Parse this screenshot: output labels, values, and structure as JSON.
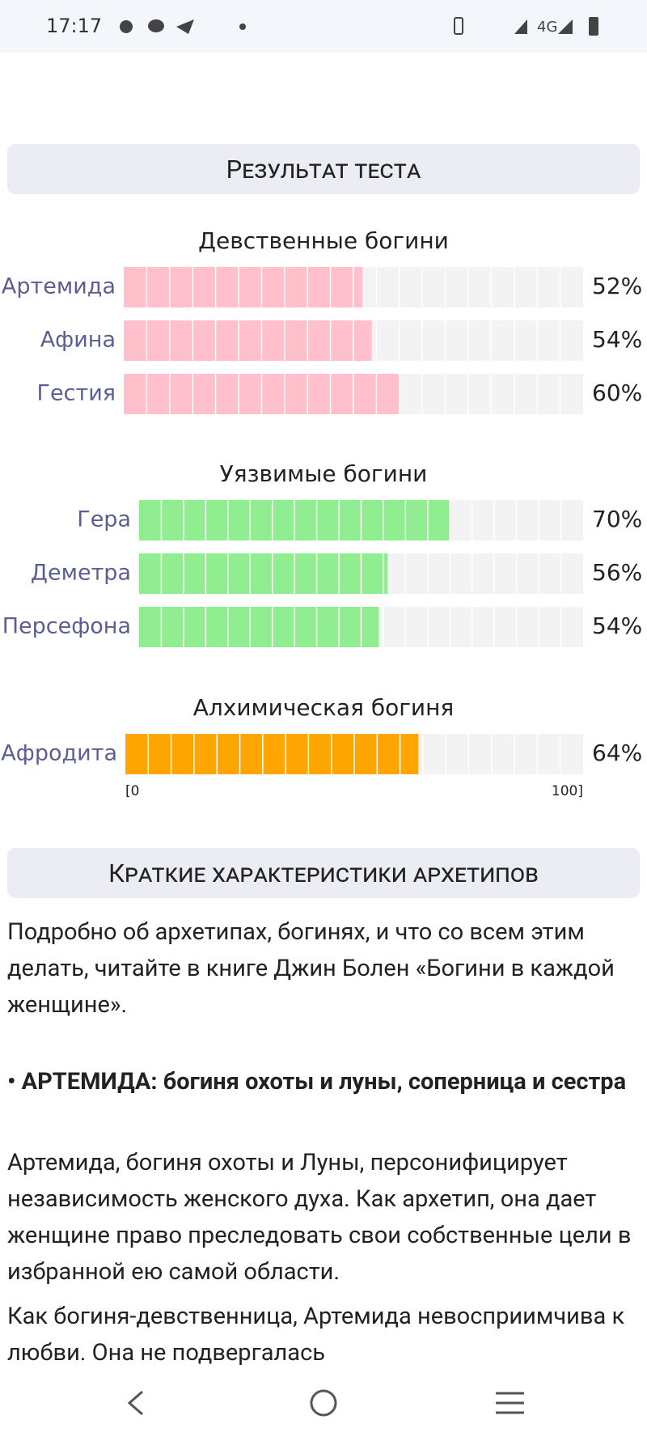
{
  "status_bar": {
    "time": "17:17",
    "network": "4G"
  },
  "results_heading": "Результат теста",
  "chart_data": [
    {
      "type": "bar",
      "orientation": "horizontal",
      "title": "Девственные богини",
      "categories": [
        "Артемида",
        "Афина",
        "Гестия"
      ],
      "values": [
        52,
        54,
        60
      ],
      "value_labels": [
        "52%",
        "54%",
        "60%"
      ],
      "color": "#ffc0cb",
      "xlim": [
        0,
        100
      ]
    },
    {
      "type": "bar",
      "orientation": "horizontal",
      "title": "Уязвимые богини",
      "categories": [
        "Гера",
        "Деметра",
        "Персефона"
      ],
      "values": [
        70,
        56,
        54
      ],
      "value_labels": [
        "70%",
        "56%",
        "54%"
      ],
      "color": "#90ee90",
      "xlim": [
        0,
        100
      ]
    },
    {
      "type": "bar",
      "orientation": "horizontal",
      "title": "Алхимическая богиня",
      "categories": [
        "Афродита"
      ],
      "values": [
        64
      ],
      "value_labels": [
        "64%"
      ],
      "color": "#ffa500",
      "xlim": [
        0,
        100
      ],
      "xticks": [
        {
          "value": 0,
          "label": "[0"
        },
        {
          "value": 100,
          "label": "100]"
        }
      ]
    }
  ],
  "summary_heading": "Краткие характеристики архетипов",
  "article": {
    "intro": "Подробно об архетипах, богинях, и что со всем этим делать, читайте в книге Джин Болен «Богини в каждой женщине».",
    "section_title": "• АРТЕМИДА: богиня охоты и луны, соперница и сестра",
    "paragraphs": [
      "Артемида, богиня охоты и Луны, персонифицирует независимость женского духа. Как архетип, она дает женщине право преследовать свои собственные цели в избранной ею самой области.",
      "Как богиня-девственница, Артемида невосприимчива к любви. Она не подвергалась"
    ]
  }
}
